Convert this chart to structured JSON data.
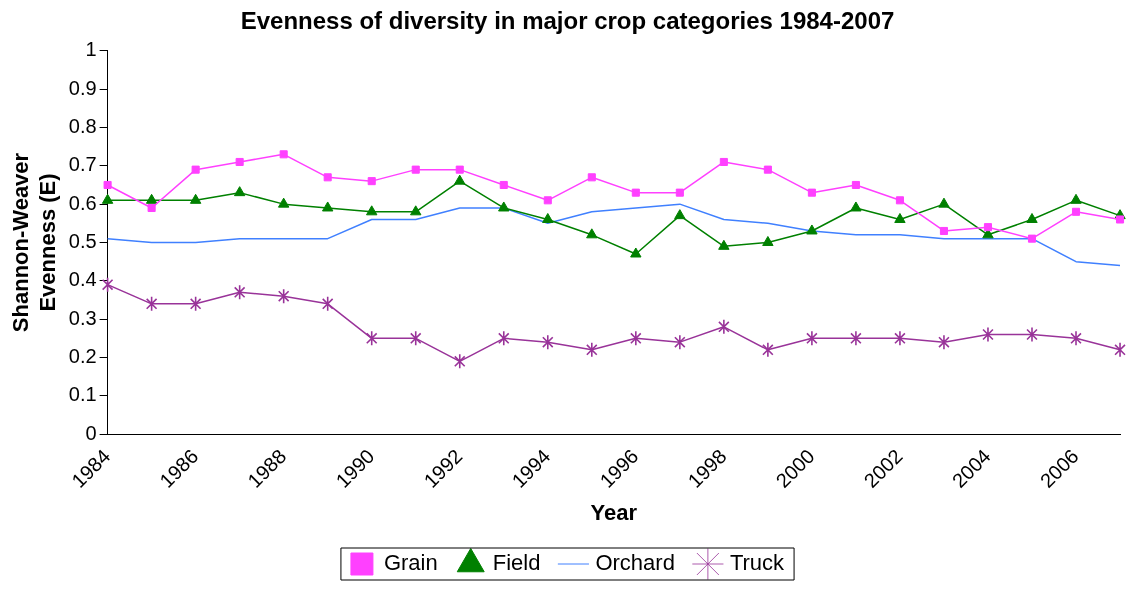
{
  "chart_data": {
    "type": "line",
    "title": "Evenness of diversity in major crop categories 1984-2007",
    "xlabel": "Year",
    "ylabel": "Shannon-Weaver Evenness (E)",
    "categories": [
      "1984",
      null,
      "1986",
      null,
      "1988",
      null,
      "1990",
      null,
      "1992",
      null,
      "1994",
      null,
      "1996",
      null,
      "1998",
      null,
      "2000",
      null,
      "2002",
      null,
      "2004",
      null,
      "2006",
      null
    ],
    "series": [
      {
        "name": "Grain",
        "color": "#ff40ff",
        "marker": "square",
        "values": [
          0.65,
          0.59,
          0.69,
          0.71,
          0.73,
          0.67,
          0.66,
          0.69,
          0.69,
          0.65,
          0.61,
          0.67,
          0.63,
          0.63,
          0.71,
          0.69,
          0.63,
          0.65,
          0.61,
          0.53,
          0.54,
          0.51,
          0.58,
          0.56
        ]
      },
      {
        "name": "Field",
        "color": "#008000",
        "marker": "triangle",
        "values": [
          0.61,
          0.61,
          0.61,
          0.63,
          0.6,
          0.59,
          0.58,
          0.58,
          0.66,
          0.59,
          0.56,
          0.52,
          0.47,
          0.57,
          0.49,
          0.5,
          0.53,
          0.59,
          0.56,
          0.6,
          0.52,
          0.56,
          0.61,
          0.57
        ]
      },
      {
        "name": "Orchard",
        "color": "#4080ff",
        "marker": "none",
        "values": [
          0.51,
          0.5,
          0.5,
          0.51,
          0.51,
          0.51,
          0.56,
          0.56,
          0.59,
          0.59,
          0.55,
          0.58,
          0.59,
          0.6,
          0.56,
          0.55,
          0.53,
          0.52,
          0.52,
          0.51,
          0.51,
          0.51,
          0.45,
          0.44
        ]
      },
      {
        "name": "Truck",
        "color": "#993399",
        "marker": "cross",
        "values": [
          0.39,
          0.34,
          0.34,
          0.37,
          0.36,
          0.34,
          0.25,
          0.25,
          0.19,
          0.25,
          0.24,
          0.22,
          0.25,
          0.24,
          0.28,
          0.22,
          0.25,
          0.25,
          0.25,
          0.24,
          0.26,
          0.26,
          0.25,
          0.22
        ]
      }
    ],
    "ylim": [
      0,
      1
    ],
    "yticks": [
      0,
      0.1,
      0.2,
      0.3,
      0.4,
      0.5,
      0.6,
      0.7,
      0.8,
      0.9,
      1
    ],
    "grid": false,
    "legend": "bottom"
  }
}
